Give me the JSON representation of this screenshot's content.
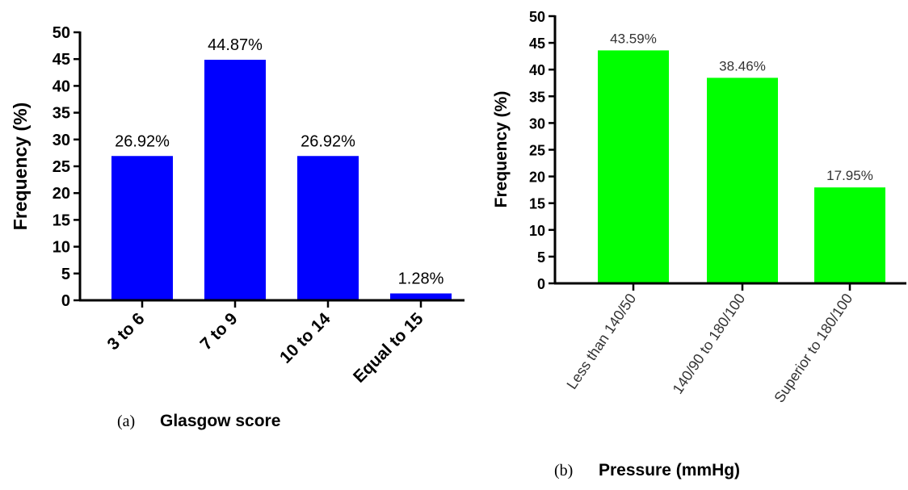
{
  "chart_data": [
    {
      "type": "bar",
      "panel_label": "(a)",
      "title": "",
      "xlabel": "Glasgow score",
      "ylabel": "Frequency (%)",
      "ylim": [
        0,
        50
      ],
      "yticks": [
        0,
        5,
        10,
        15,
        20,
        25,
        30,
        35,
        40,
        45,
        50
      ],
      "categories": [
        "3 to 6",
        "7 to 9",
        "10 to 14",
        "Equal to 15"
      ],
      "values": [
        26.92,
        44.87,
        26.92,
        1.28
      ],
      "data_labels": [
        "26.92%",
        "44.87%",
        "26.92%",
        "1.28%"
      ],
      "color": "#0000ff",
      "grid": false,
      "legend": "none"
    },
    {
      "type": "bar",
      "panel_label": "(b)",
      "title": "",
      "xlabel": "Pressure (mmHg)",
      "ylabel": "Frequency (%)",
      "ylim": [
        0,
        50
      ],
      "yticks": [
        0,
        5,
        10,
        15,
        20,
        25,
        30,
        35,
        40,
        45,
        50
      ],
      "categories": [
        "Less than 140/50",
        "140/90 to 180/100",
        "Superior to 180/100"
      ],
      "values": [
        43.59,
        38.46,
        17.95
      ],
      "data_labels": [
        "43.59%",
        "38.46%",
        "17.95%"
      ],
      "color": "#00ff00",
      "grid": false,
      "legend": "none"
    }
  ]
}
